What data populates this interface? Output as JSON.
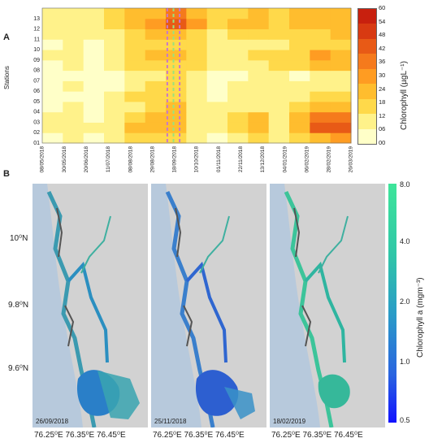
{
  "panel_a": {
    "label": "A",
    "ylabel": "Stations",
    "stations": [
      "01",
      "02",
      "03",
      "04",
      "05",
      "06",
      "07",
      "08",
      "09",
      "10",
      "11",
      "12",
      "13"
    ],
    "dates": [
      "08/05/2018",
      "30/05/2018",
      "20/06/2018",
      "11/07/2018",
      "08/08/2018",
      "29/08/2018",
      "18/09/2018",
      "10/10/2018",
      "01/11/2018",
      "22/11/2018",
      "13/12/2018",
      "04/01/2019",
      "06/02/2019",
      "28/02/2019",
      "26/03/2019"
    ],
    "colorbar": {
      "title": "Chlorophyll (µgL⁻¹)",
      "ticks": [
        "00",
        "06",
        "12",
        "18",
        "24",
        "30",
        "36",
        "42",
        "48",
        "54",
        "60"
      ],
      "colors": [
        "#ffffc8",
        "#fff28a",
        "#ffd94a",
        "#ffbd2e",
        "#ff9c22",
        "#f57a1c",
        "#e85a16",
        "#d83a12",
        "#c8200e"
      ]
    }
  },
  "panel_b": {
    "label": "B",
    "maps": [
      {
        "date": "26/09/2018"
      },
      {
        "date": "25/11/2018"
      },
      {
        "date": "18/02/2019"
      }
    ],
    "lat_labels": [
      "10⁰N",
      "9.8⁰N",
      "9.6⁰N"
    ],
    "lon_labels": [
      "76.25⁰E",
      "76.35⁰E",
      "76.45⁰E"
    ],
    "colorbar": {
      "title": "Chlorophyll a (mgm⁻³)",
      "ticks": [
        "8.0",
        "4.0",
        "2.0",
        "1.0",
        "0.5"
      ]
    },
    "colors": {
      "sea": "#b7c9dc",
      "land": "#d2d2d2",
      "channel": "#5a5a5a"
    }
  },
  "chart_data": [
    {
      "type": "heatmap",
      "title": "",
      "xlabel": "",
      "ylabel": "Stations",
      "x": [
        "08/05/2018",
        "30/05/2018",
        "20/06/2018",
        "11/07/2018",
        "08/08/2018",
        "29/08/2018",
        "18/09/2018",
        "10/10/2018",
        "01/11/2018",
        "22/11/2018",
        "13/12/2018",
        "04/01/2019",
        "06/02/2019",
        "28/02/2019",
        "26/03/2019"
      ],
      "y": [
        "01",
        "02",
        "03",
        "04",
        "05",
        "06",
        "07",
        "08",
        "09",
        "10",
        "11",
        "12",
        "13"
      ],
      "colorbar_label": "Chlorophyll (µgL⁻¹)",
      "zlim": [
        0,
        60
      ],
      "values": [
        [
          6,
          8,
          6,
          10,
          14,
          18,
          16,
          8,
          6,
          10,
          14,
          10,
          16,
          24,
          30
        ],
        [
          10,
          12,
          8,
          12,
          20,
          24,
          22,
          10,
          8,
          16,
          22,
          12,
          26,
          46,
          40
        ],
        [
          8,
          10,
          6,
          10,
          18,
          22,
          24,
          12,
          8,
          14,
          20,
          12,
          20,
          38,
          34
        ],
        [
          6,
          8,
          6,
          8,
          12,
          16,
          20,
          12,
          8,
          10,
          12,
          10,
          14,
          22,
          24
        ],
        [
          4,
          6,
          4,
          8,
          14,
          18,
          16,
          10,
          6,
          8,
          10,
          8,
          10,
          16,
          18
        ],
        [
          6,
          8,
          4,
          6,
          12,
          16,
          16,
          12,
          6,
          8,
          10,
          10,
          8,
          12,
          12
        ],
        [
          4,
          6,
          4,
          6,
          10,
          12,
          14,
          10,
          4,
          6,
          8,
          10,
          6,
          10,
          10
        ],
        [
          6,
          8,
          4,
          8,
          14,
          16,
          18,
          14,
          8,
          10,
          12,
          14,
          14,
          24,
          22
        ],
        [
          8,
          10,
          6,
          10,
          16,
          20,
          22,
          16,
          10,
          12,
          14,
          16,
          18,
          28,
          26
        ],
        [
          6,
          8,
          6,
          8,
          14,
          16,
          18,
          14,
          8,
          10,
          12,
          12,
          14,
          16,
          18
        ],
        [
          8,
          10,
          8,
          10,
          16,
          20,
          24,
          18,
          12,
          14,
          16,
          14,
          16,
          18,
          20
        ],
        [
          10,
          12,
          10,
          14,
          22,
          28,
          44,
          30,
          18,
          20,
          22,
          18,
          22,
          24,
          26
        ],
        [
          10,
          12,
          10,
          14,
          20,
          26,
          36,
          26,
          16,
          18,
          20,
          16,
          20,
          22,
          24
        ]
      ]
    },
    {
      "type": "heatmap",
      "title": "",
      "xlabel": "",
      "ylabel": "",
      "x_ticks": [
        "76.25⁰E",
        "76.35⁰E",
        "76.45⁰E"
      ],
      "y_ticks": [
        "10⁰N",
        "9.8⁰N",
        "9.6⁰N"
      ],
      "colorbar_label": "Chlorophyll a (mgm⁻³)",
      "colorbar_ticks": [
        8.0,
        4.0,
        2.0,
        1.0,
        0.5
      ],
      "panels": [
        "26/09/2018",
        "25/11/2018",
        "18/02/2019"
      ]
    }
  ]
}
